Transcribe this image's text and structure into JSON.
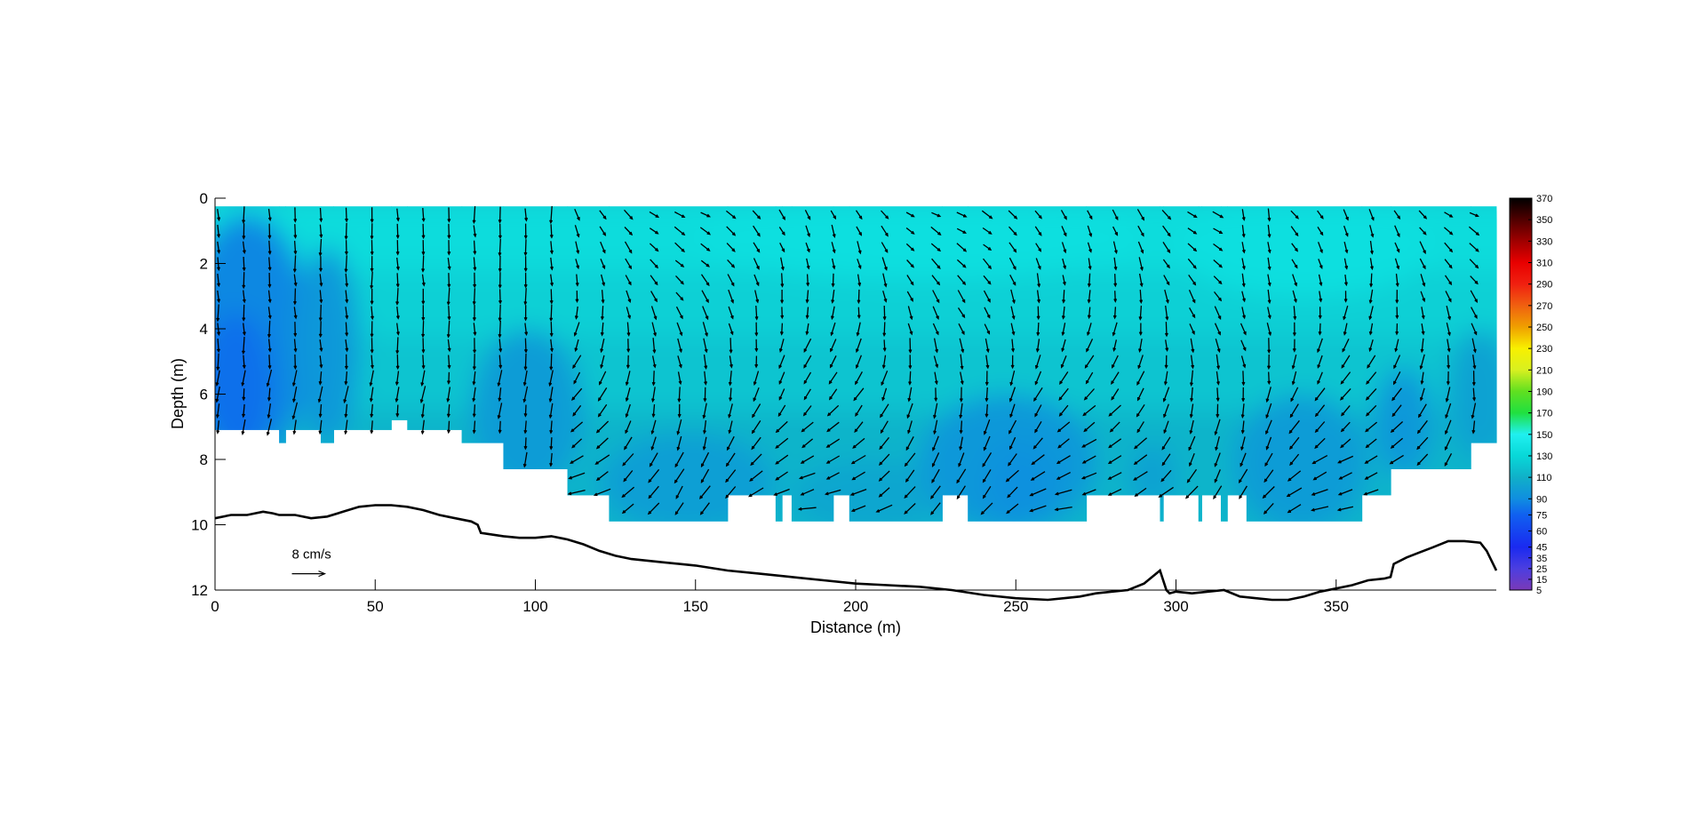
{
  "chart_data": {
    "type": "heatmap",
    "xlabel": "Distance (m)",
    "ylabel": "Depth (m)",
    "xlim": [
      0,
      400
    ],
    "ylim": [
      12,
      0
    ],
    "x_ticks": [
      "0",
      "50",
      "100",
      "150",
      "200",
      "250",
      "300",
      "350"
    ],
    "y_ticks": [
      "0",
      "2",
      "4",
      "6",
      "8",
      "10",
      "12"
    ],
    "colorbar": {
      "range": [
        5,
        370
      ],
      "labels": [
        "370",
        "350",
        "330",
        "310",
        "290",
        "270",
        "250",
        "230",
        "210",
        "190",
        "170",
        "150",
        "130",
        "110",
        "90",
        "75",
        "60",
        "45",
        "35",
        "25",
        "15",
        "5"
      ],
      "stops": [
        {
          "v": 5,
          "color": "#7a3ab8"
        },
        {
          "v": 25,
          "color": "#4c3ee0"
        },
        {
          "v": 45,
          "color": "#1a2af0"
        },
        {
          "v": 75,
          "color": "#1060f0"
        },
        {
          "v": 90,
          "color": "#108ee0"
        },
        {
          "v": 110,
          "color": "#10b0c8"
        },
        {
          "v": 130,
          "color": "#08d8d8"
        },
        {
          "v": 150,
          "color": "#20f0f0"
        },
        {
          "v": 170,
          "color": "#20e040"
        },
        {
          "v": 190,
          "color": "#60e020"
        },
        {
          "v": 210,
          "color": "#d8f020"
        },
        {
          "v": 230,
          "color": "#f8f000"
        },
        {
          "v": 250,
          "color": "#f0a000"
        },
        {
          "v": 270,
          "color": "#f06010"
        },
        {
          "v": 290,
          "color": "#f02010"
        },
        {
          "v": 310,
          "color": "#e80000"
        },
        {
          "v": 330,
          "color": "#a00000"
        },
        {
          "v": 350,
          "color": "#500000"
        },
        {
          "v": 370,
          "color": "#000000"
        }
      ]
    },
    "measured_top_depth": 0.25,
    "bottom_extent": [
      {
        "x0": 0,
        "x1": 20,
        "depth": 7.1
      },
      {
        "x0": 20,
        "x1": 22,
        "depth": 7.5
      },
      {
        "x0": 22,
        "x1": 33,
        "depth": 7.1
      },
      {
        "x0": 33,
        "x1": 37,
        "depth": 7.5
      },
      {
        "x0": 37,
        "x1": 55,
        "depth": 7.1
      },
      {
        "x0": 55,
        "x1": 60,
        "depth": 6.8
      },
      {
        "x0": 60,
        "x1": 77,
        "depth": 7.1
      },
      {
        "x0": 77,
        "x1": 90,
        "depth": 7.5
      },
      {
        "x0": 90,
        "x1": 110,
        "depth": 8.3
      },
      {
        "x0": 110,
        "x1": 123,
        "depth": 9.1
      },
      {
        "x0": 123,
        "x1": 160,
        "depth": 9.9
      },
      {
        "x0": 160,
        "x1": 175,
        "depth": 9.1
      },
      {
        "x0": 175,
        "x1": 177,
        "depth": 9.9
      },
      {
        "x0": 177,
        "x1": 180,
        "depth": 9.1
      },
      {
        "x0": 180,
        "x1": 193,
        "depth": 9.9
      },
      {
        "x0": 193,
        "x1": 198,
        "depth": 9.1
      },
      {
        "x0": 198,
        "x1": 227,
        "depth": 9.9
      },
      {
        "x0": 227,
        "x1": 235,
        "depth": 9.1
      },
      {
        "x0": 235,
        "x1": 272,
        "depth": 9.9
      },
      {
        "x0": 272,
        "x1": 295,
        "depth": 9.1
      },
      {
        "x0": 295,
        "x1": 296,
        "depth": 9.9
      },
      {
        "x0": 296,
        "x1": 307,
        "depth": 9.1
      },
      {
        "x0": 307,
        "x1": 308,
        "depth": 9.9
      },
      {
        "x0": 308,
        "x1": 314,
        "depth": 9.1
      },
      {
        "x0": 314,
        "x1": 316,
        "depth": 9.9
      },
      {
        "x0": 316,
        "x1": 322,
        "depth": 9.1
      },
      {
        "x0": 322,
        "x1": 358,
        "depth": 9.9
      },
      {
        "x0": 358,
        "x1": 367,
        "depth": 9.1
      },
      {
        "x0": 367,
        "x1": 392,
        "depth": 8.3
      },
      {
        "x0": 392,
        "x1": 400,
        "depth": 7.5
      }
    ],
    "bed_profile": {
      "x": [
        0,
        5,
        10,
        15,
        18,
        20,
        25,
        30,
        35,
        40,
        45,
        50,
        55,
        60,
        65,
        70,
        75,
        80,
        82,
        83,
        90,
        95,
        100,
        105,
        110,
        115,
        120,
        125,
        130,
        140,
        150,
        160,
        170,
        180,
        190,
        200,
        210,
        220,
        230,
        240,
        250,
        260,
        265,
        270,
        275,
        280,
        285,
        290,
        295,
        297,
        298,
        300,
        305,
        310,
        315,
        320,
        325,
        330,
        335,
        340,
        345,
        350,
        355,
        360,
        365,
        367,
        368,
        372,
        376,
        380,
        385,
        390,
        395,
        397,
        400
      ],
      "depth": [
        9.8,
        9.7,
        9.7,
        9.6,
        9.65,
        9.7,
        9.7,
        9.8,
        9.75,
        9.6,
        9.45,
        9.4,
        9.4,
        9.45,
        9.55,
        9.7,
        9.8,
        9.9,
        10.0,
        10.25,
        10.35,
        10.4,
        10.4,
        10.35,
        10.45,
        10.6,
        10.8,
        10.95,
        11.05,
        11.15,
        11.25,
        11.4,
        11.5,
        11.6,
        11.7,
        11.8,
        11.85,
        11.9,
        12.0,
        12.15,
        12.25,
        12.3,
        12.25,
        12.2,
        12.1,
        12.05,
        12.0,
        11.8,
        11.4,
        12.0,
        12.1,
        12.05,
        12.1,
        12.05,
        12.0,
        12.2,
        12.25,
        12.3,
        12.3,
        12.2,
        12.05,
        11.95,
        11.85,
        11.7,
        11.65,
        11.6,
        11.2,
        11.0,
        10.85,
        10.7,
        10.5,
        10.5,
        10.55,
        10.8,
        11.4
      ]
    },
    "vector_scale": {
      "label": "8 cm/s",
      "speed_cm_s": 8,
      "x": 24,
      "depth": 11.5
    },
    "vector_grid": {
      "x_start": 1,
      "x_step": 8,
      "x_end": 397,
      "depth_start": 0.5,
      "depth_step": 0.5
    }
  }
}
